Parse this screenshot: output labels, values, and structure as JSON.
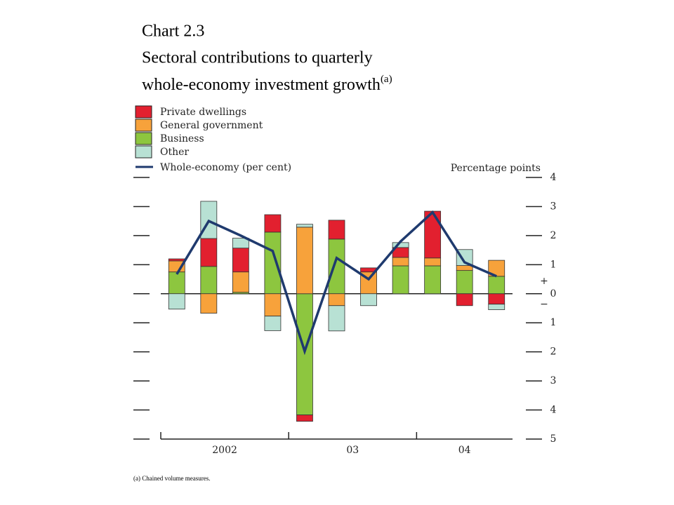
{
  "chart_data": {
    "type": "stacked_bar_line",
    "title": "Chart 2.3",
    "subtitle_lines": [
      "Sectoral contributions to quarterly",
      "whole-economy investment growth"
    ],
    "title_note": "(a)",
    "ylabel": "Percentage points",
    "positive_label": "+",
    "negative_label": "−",
    "footnote": "(a)  Chained volume measures.",
    "categories": [
      null,
      null,
      null,
      null,
      null,
      null,
      null,
      null,
      null,
      null,
      null
    ],
    "year_labels": [
      "2002",
      "03",
      "04"
    ],
    "series": [
      {
        "name": "Private dwellings",
        "color": "#e2202f",
        "values": [
          0.07,
          0.96,
          0.82,
          0.6,
          -0.22,
          0.65,
          0.14,
          0.34,
          1.61,
          -0.41,
          -0.36
        ]
      },
      {
        "name": "General government",
        "color": "#f7a23b",
        "values": [
          0.38,
          -0.67,
          0.7,
          -0.77,
          2.29,
          -0.41,
          0.75,
          0.29,
          0.27,
          0.17,
          0.55
        ]
      },
      {
        "name": "Business",
        "color": "#8dc63f",
        "values": [
          0.75,
          0.94,
          0.05,
          2.12,
          -4.17,
          1.88,
          0,
          0.96,
          0.96,
          0.8,
          0.6
        ]
      },
      {
        "name": "Other",
        "color": "#b8e1d4",
        "values": [
          -0.53,
          1.28,
          0.34,
          -0.5,
          0.1,
          -0.87,
          -0.41,
          0.17,
          0,
          0.55,
          -0.19
        ]
      }
    ],
    "line": {
      "name": "Whole-economy (per cent)",
      "color": "#1f3a6e",
      "values": [
        0.67,
        2.5,
        2.0,
        1.47,
        -1.98,
        1.23,
        0.5,
        1.8,
        2.8,
        1.08,
        0.6
      ]
    },
    "ylim": [
      -5,
      4
    ],
    "yticks": [
      4,
      3,
      2,
      1,
      0,
      {
        "value": -1,
        "label": "1"
      },
      {
        "value": -2,
        "label": "2"
      },
      {
        "value": -3,
        "label": "3"
      },
      {
        "value": -4,
        "label": "4"
      },
      {
        "value": -5,
        "label": "5"
      }
    ]
  }
}
